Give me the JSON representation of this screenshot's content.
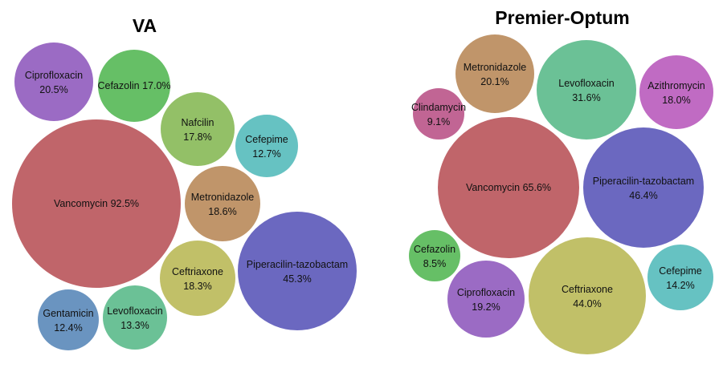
{
  "chart_data": [
    {
      "type": "bubble",
      "title": "VA",
      "bubbles": [
        {
          "name": "Ciprofloxacin",
          "value": 20.5,
          "label": "20.5%",
          "color": "#9b6bc4"
        },
        {
          "name": "Cefazolin",
          "value": 17.0,
          "label": "17.0%",
          "color": "#66bf66"
        },
        {
          "name": "Nafcilin",
          "value": 17.8,
          "label": "17.8%",
          "color": "#93c067"
        },
        {
          "name": "Cefepime",
          "value": 12.7,
          "label": "12.7%",
          "color": "#66c2c2"
        },
        {
          "name": "Vancomycin",
          "value": 92.5,
          "label": "92.5%",
          "color": "#c0656a"
        },
        {
          "name": "Metronidazole",
          "value": 18.6,
          "label": "18.6%",
          "color": "#c0956a"
        },
        {
          "name": "Piperacilin-tazobactam",
          "value": 45.3,
          "label": "45.3%",
          "color": "#6b68c0"
        },
        {
          "name": "Ceftriaxone",
          "value": 18.3,
          "label": "18.3%",
          "color": "#c1c068"
        },
        {
          "name": "Gentamicin",
          "value": 12.4,
          "label": "12.4%",
          "color": "#6a94c0"
        },
        {
          "name": "Levofloxacin",
          "value": 13.3,
          "label": "13.3%",
          "color": "#6bc196"
        }
      ]
    },
    {
      "type": "bubble",
      "title": "Premier-Optum",
      "bubbles": [
        {
          "name": "Metronidazole",
          "value": 20.1,
          "label": "20.1%",
          "color": "#c0956a"
        },
        {
          "name": "Levofloxacin",
          "value": 31.6,
          "label": "31.6%",
          "color": "#6bc196"
        },
        {
          "name": "Azithromycin",
          "value": 18.0,
          "label": "18.0%",
          "color": "#c06bc3"
        },
        {
          "name": "Clindamycin",
          "value": 9.1,
          "label": "9.1%",
          "color": "#c16594"
        },
        {
          "name": "Vancomycin",
          "value": 65.6,
          "label": "65.6%",
          "color": "#c0656a"
        },
        {
          "name": "Piperacilin-tazobactam",
          "value": 46.4,
          "label": "46.4%",
          "color": "#6b68c0"
        },
        {
          "name": "Cefazolin",
          "value": 8.5,
          "label": "8.5%",
          "color": "#66bf66"
        },
        {
          "name": "Ciprofloxacin",
          "value": 19.2,
          "label": "19.2%",
          "color": "#9b6bc4"
        },
        {
          "name": "Ceftriaxone",
          "value": 44.0,
          "label": "44.0%",
          "color": "#c1c068"
        },
        {
          "name": "Cefepime",
          "value": 14.2,
          "label": "14.2%",
          "color": "#66c2c2"
        }
      ]
    }
  ]
}
